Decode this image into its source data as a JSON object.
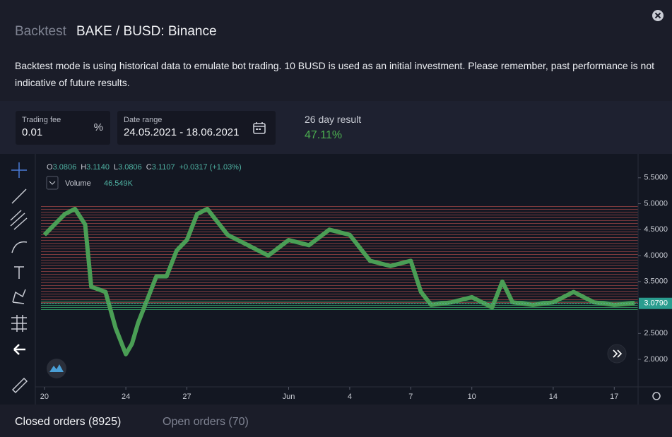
{
  "header": {
    "label": "Backtest",
    "pair": "BAKE / BUSD: Binance"
  },
  "description": "Backtest mode is using historical data to emulate bot trading. 10 BUSD is used as an initial investment. Please remember, past performance is not indicative of future results.",
  "fields": {
    "trading_fee": {
      "label": "Trading fee",
      "value": "0.01",
      "unit": "%"
    },
    "date_range": {
      "label": "Date range",
      "value": "24.05.2021 - 18.06.2021"
    },
    "result": {
      "label": "26 day result",
      "value": "47.11%"
    }
  },
  "chart_data": {
    "type": "line",
    "ohlc": [
      {
        "label": "O",
        "value": "3.0806"
      },
      {
        "label": "H",
        "value": "3.1140"
      },
      {
        "label": "L",
        "value": "3.0806"
      },
      {
        "label": "C",
        "value": "3.1107"
      }
    ],
    "change": "+0.0317 (+1.03%)",
    "volume": {
      "name": "Volume",
      "value": "46.549K"
    },
    "last_price": {
      "value": 3.079,
      "label": "3.0790"
    },
    "color": "#4a9e55",
    "x": [
      0,
      1,
      1.5,
      2,
      2.3,
      3,
      3.5,
      4,
      4.3,
      4.6,
      5,
      5.5,
      6,
      6.5,
      7,
      7.5,
      8,
      9,
      10,
      11,
      12,
      13,
      14,
      15,
      16,
      17,
      18,
      18.5,
      19,
      20,
      21,
      22,
      22.5,
      23,
      24,
      25,
      26,
      27,
      28,
      29
    ],
    "values": [
      4.4,
      4.8,
      4.9,
      4.6,
      3.4,
      3.3,
      2.6,
      2.1,
      2.3,
      2.7,
      3.1,
      3.6,
      3.6,
      4.1,
      4.3,
      4.8,
      4.9,
      4.4,
      4.2,
      4.0,
      4.3,
      4.2,
      4.5,
      4.4,
      3.9,
      3.8,
      3.9,
      3.3,
      3.05,
      3.1,
      3.2,
      3.0,
      3.5,
      3.1,
      3.05,
      3.1,
      3.3,
      3.1,
      3.05,
      3.08
    ],
    "xlim": [
      -0.17,
      29.17
    ],
    "xticks": [
      {
        "value": 0,
        "label": "20"
      },
      {
        "value": 4,
        "label": "24"
      },
      {
        "value": 7,
        "label": "27"
      },
      {
        "value": 12,
        "label": "Jun"
      },
      {
        "value": 15,
        "label": "4"
      },
      {
        "value": 18,
        "label": "7"
      },
      {
        "value": 21,
        "label": "10"
      },
      {
        "value": 25,
        "label": "14"
      },
      {
        "value": 28,
        "label": "17"
      }
    ],
    "ylim": [
      1.47,
      5.96
    ],
    "yticks": [
      {
        "value": 5.5,
        "label": "5.5000"
      },
      {
        "value": 5,
        "label": "5.0000"
      },
      {
        "value": 4.5,
        "label": "4.5000"
      },
      {
        "value": 4,
        "label": "4.0000"
      },
      {
        "value": 3.5,
        "label": "3.5000"
      },
      {
        "value": 2.5,
        "label": "2.5000"
      },
      {
        "value": 2,
        "label": "2.0000"
      }
    ]
  },
  "tabs": [
    "Closed orders (8925)",
    "Open orders (70)"
  ]
}
